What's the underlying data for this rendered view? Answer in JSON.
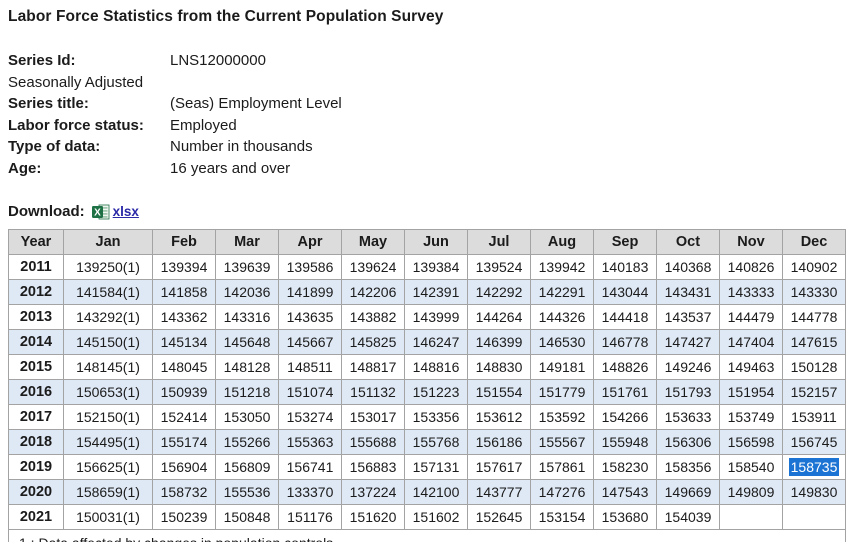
{
  "page": {
    "title": "Labor Force Statistics from the Current Population Survey"
  },
  "series_meta": {
    "series_id_label": "Series Id:",
    "series_id_value": "LNS12000000",
    "seasonal_adjustment_note": "Seasonally Adjusted",
    "series_title_label": "Series title:",
    "series_title_value": "(Seas) Employment Level",
    "labor_force_status_label": "Labor force status:",
    "labor_force_status_value": "Employed",
    "type_of_data_label": "Type of data:",
    "type_of_data_value": "Number in thousands",
    "age_label": "Age:",
    "age_value": "16 years and over"
  },
  "download": {
    "label": "Download:",
    "icon": "excel-icon",
    "link_label": "xlsx"
  },
  "colors": {
    "header_bg": "#dcdcdc",
    "alt_row_bg": "#dfe9f6",
    "cell_border": "#a3a3a3",
    "selection_bg": "#1b74d4",
    "selection_text": "#ffffff",
    "link": "#2a28a7",
    "excel_green": "#1e7145"
  },
  "table": {
    "columns": [
      "Year",
      "Jan",
      "Feb",
      "Mar",
      "Apr",
      "May",
      "Jun",
      "Jul",
      "Aug",
      "Sep",
      "Oct",
      "Nov",
      "Dec"
    ],
    "rows": [
      {
        "year": "2011",
        "values": [
          "139250(1)",
          "139394",
          "139639",
          "139586",
          "139624",
          "139384",
          "139524",
          "139942",
          "140183",
          "140368",
          "140826",
          "140902"
        ]
      },
      {
        "year": "2012",
        "values": [
          "141584(1)",
          "141858",
          "142036",
          "141899",
          "142206",
          "142391",
          "142292",
          "142291",
          "143044",
          "143431",
          "143333",
          "143330"
        ]
      },
      {
        "year": "2013",
        "values": [
          "143292(1)",
          "143362",
          "143316",
          "143635",
          "143882",
          "143999",
          "144264",
          "144326",
          "144418",
          "143537",
          "144479",
          "144778"
        ]
      },
      {
        "year": "2014",
        "values": [
          "145150(1)",
          "145134",
          "145648",
          "145667",
          "145825",
          "146247",
          "146399",
          "146530",
          "146778",
          "147427",
          "147404",
          "147615"
        ]
      },
      {
        "year": "2015",
        "values": [
          "148145(1)",
          "148045",
          "148128",
          "148511",
          "148817",
          "148816",
          "148830",
          "149181",
          "148826",
          "149246",
          "149463",
          "150128"
        ]
      },
      {
        "year": "2016",
        "values": [
          "150653(1)",
          "150939",
          "151218",
          "151074",
          "151132",
          "151223",
          "151554",
          "151779",
          "151761",
          "151793",
          "151954",
          "152157"
        ]
      },
      {
        "year": "2017",
        "values": [
          "152150(1)",
          "152414",
          "153050",
          "153274",
          "153017",
          "153356",
          "153612",
          "153592",
          "154266",
          "153633",
          "153749",
          "153911"
        ]
      },
      {
        "year": "2018",
        "values": [
          "154495(1)",
          "155174",
          "155266",
          "155363",
          "155688",
          "155768",
          "156186",
          "155567",
          "155948",
          "156306",
          "156598",
          "156745"
        ]
      },
      {
        "year": "2019",
        "values": [
          "156625(1)",
          "156904",
          "156809",
          "156741",
          "156883",
          "157131",
          "157617",
          "157861",
          "158230",
          "158356",
          "158540",
          "158735"
        ]
      },
      {
        "year": "2020",
        "values": [
          "158659(1)",
          "158732",
          "155536",
          "133370",
          "137224",
          "142100",
          "143777",
          "147276",
          "147543",
          "149669",
          "149809",
          "149830"
        ]
      },
      {
        "year": "2021",
        "values": [
          "150031(1)",
          "150239",
          "150848",
          "151176",
          "151620",
          "151602",
          "152645",
          "153154",
          "153680",
          "154039",
          "",
          ""
        ]
      }
    ],
    "highlighted_cell": {
      "year": "2019",
      "month": "Dec",
      "value": "158735"
    },
    "footnote": "1 : Data affected by changes in population controls"
  }
}
